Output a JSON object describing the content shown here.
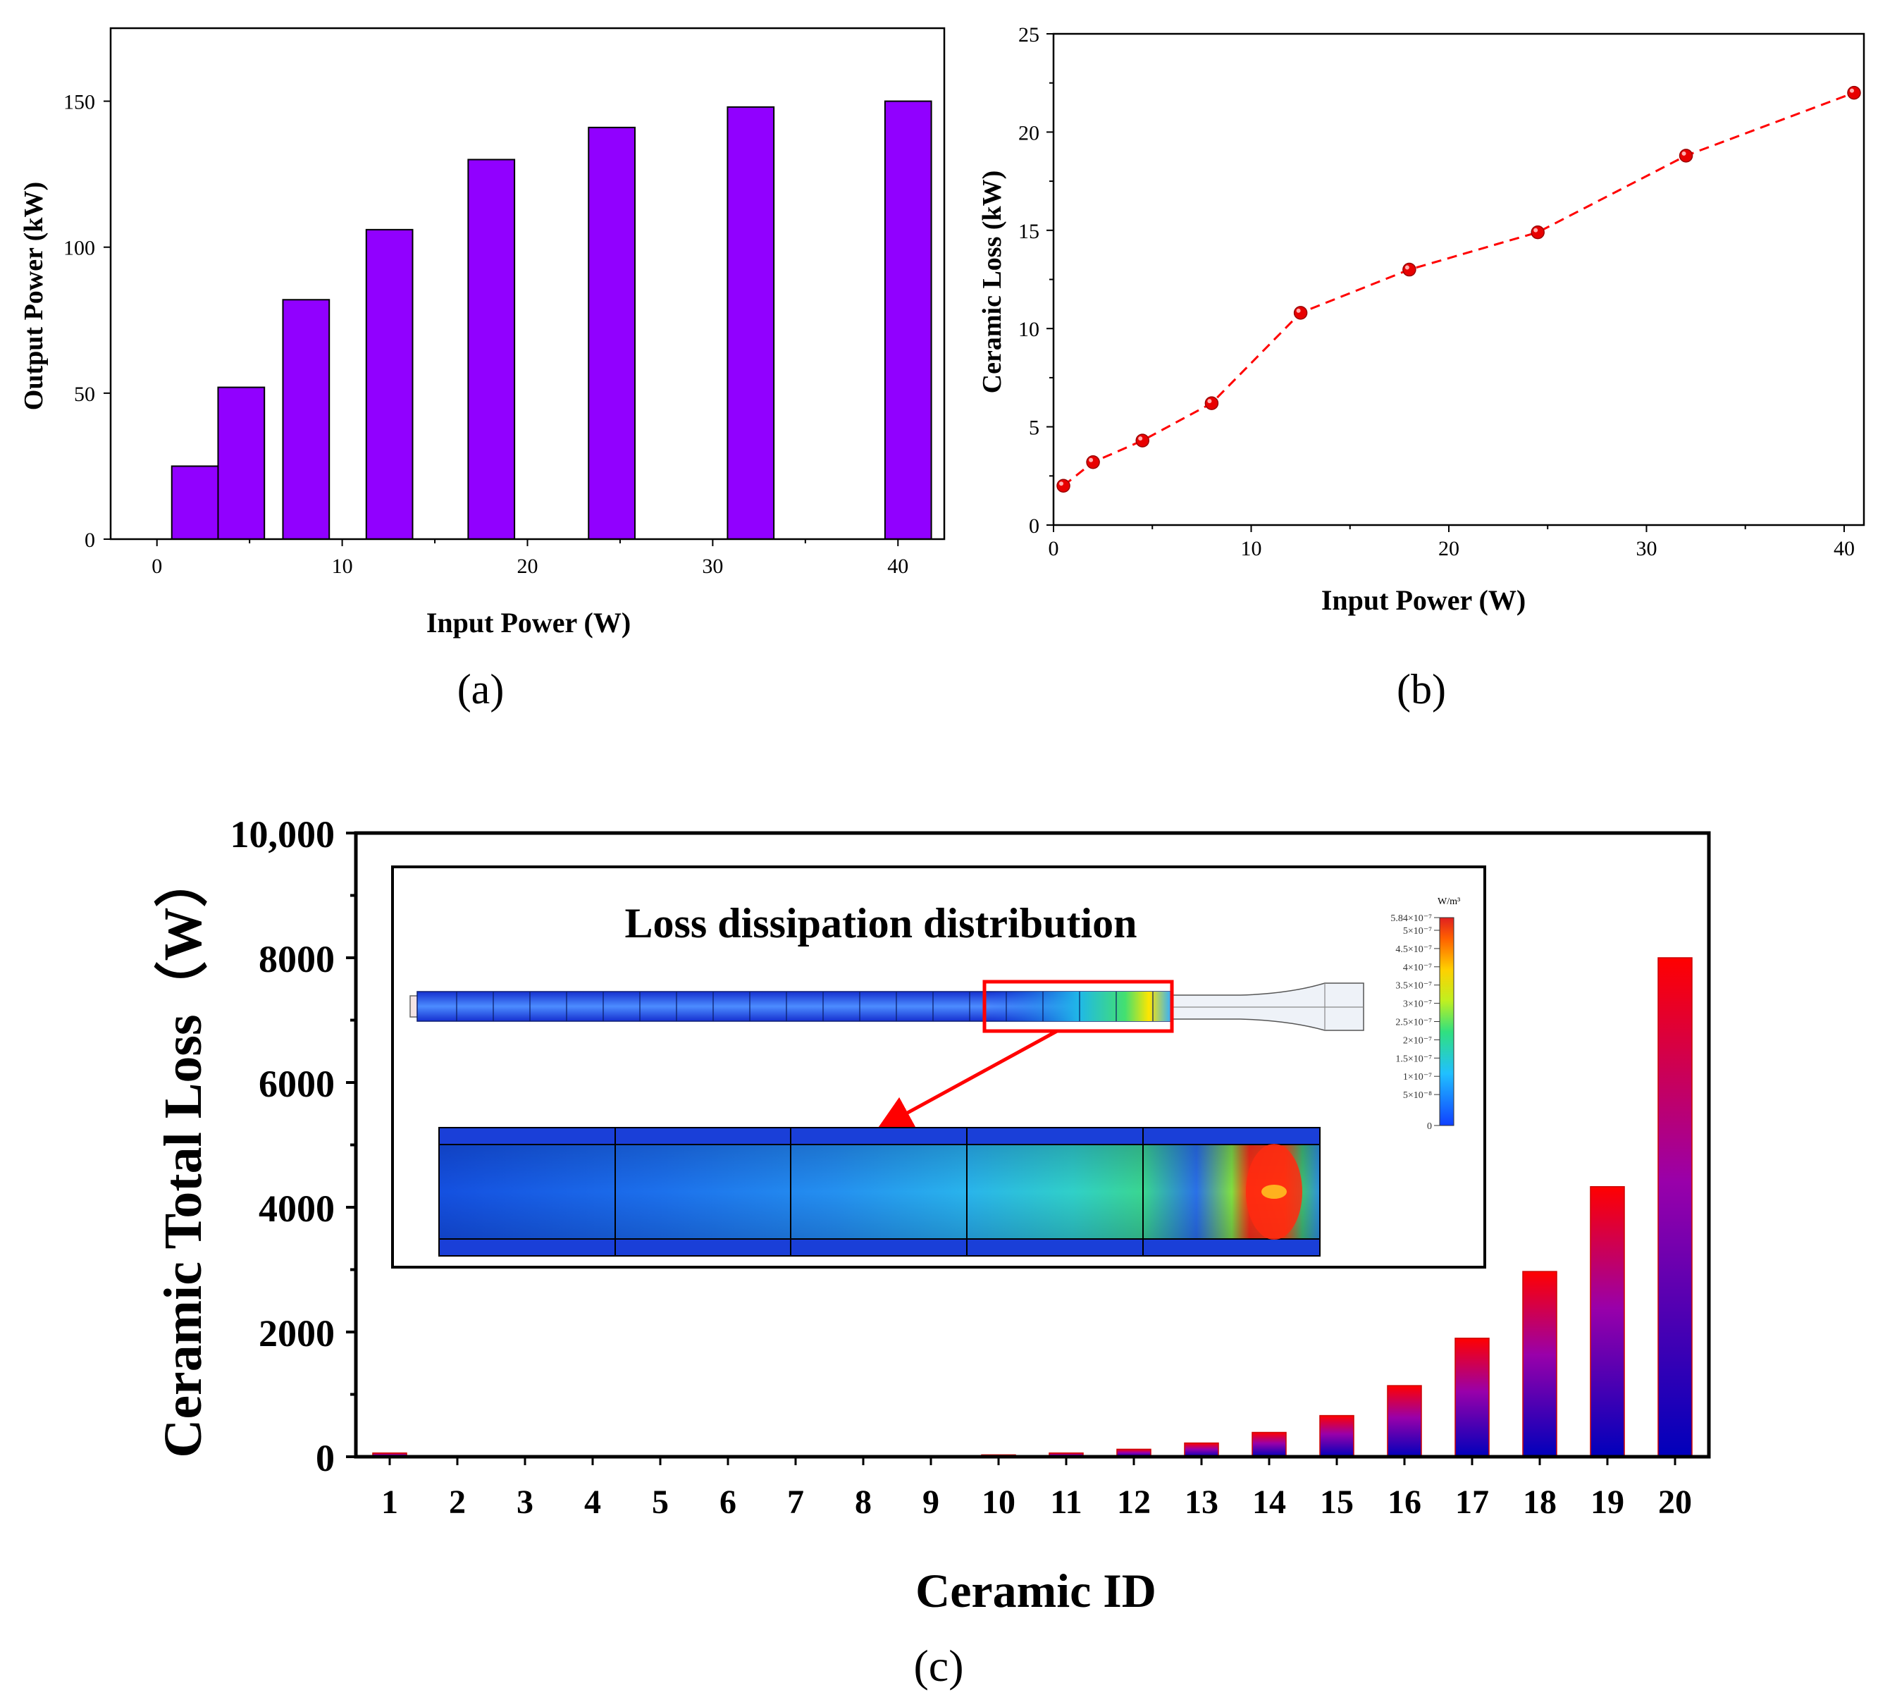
{
  "chart_data": [
    {
      "id": "a",
      "type": "bar",
      "panel_label": "(a)",
      "title": "",
      "xlabel": "Input Power (W)",
      "ylabel": "Output Power (kW)",
      "xlim": [
        -2.5,
        42.5
      ],
      "ylim": [
        0,
        175
      ],
      "xticks": [
        0,
        10,
        20,
        30,
        40
      ],
      "yticks": [
        0,
        50,
        100,
        150
      ],
      "bar_color": "#9100FF",
      "bars": [
        {
          "x0": 0.8,
          "x1": 3.3,
          "value": 25
        },
        {
          "x0": 3.3,
          "x1": 5.8,
          "value": 52
        },
        {
          "x0": 6.8,
          "x1": 9.3,
          "value": 82
        },
        {
          "x0": 11.3,
          "x1": 13.8,
          "value": 106
        },
        {
          "x0": 16.8,
          "x1": 19.3,
          "value": 130
        },
        {
          "x0": 23.3,
          "x1": 25.8,
          "value": 141
        },
        {
          "x0": 30.8,
          "x1": 33.3,
          "value": 148
        },
        {
          "x0": 39.3,
          "x1": 41.8,
          "value": 150
        }
      ]
    },
    {
      "id": "b",
      "type": "line",
      "panel_label": "(b)",
      "title": "",
      "xlabel": "Input Power (W)",
      "ylabel": "Ceramic Loss (kW)",
      "xlim": [
        0,
        41
      ],
      "ylim": [
        0,
        25
      ],
      "xticks": [
        0,
        10,
        20,
        30,
        40
      ],
      "yticks": [
        0,
        5,
        10,
        15,
        20,
        25
      ],
      "line_color": "#FF0000",
      "line_style": "dashed",
      "x": [
        0.5,
        2,
        4.5,
        8,
        12.5,
        18,
        24.5,
        32,
        40.5
      ],
      "y": [
        2.0,
        3.2,
        4.3,
        6.2,
        10.8,
        13.0,
        14.9,
        18.8,
        22.0
      ]
    },
    {
      "id": "c",
      "type": "bar",
      "panel_label": "(c)",
      "title": "",
      "xlabel": "Ceramic ID",
      "ylabel": "Ceramic Total Loss（W）",
      "ylim": [
        0,
        10000
      ],
      "yticks": [
        0,
        2000,
        4000,
        6000,
        8000,
        10000
      ],
      "ytick_labels": [
        "0",
        "2000",
        "4000",
        "6000",
        "8000",
        "10,000"
      ],
      "categories": [
        "1",
        "2",
        "3",
        "4",
        "5",
        "6",
        "7",
        "8",
        "9",
        "10",
        "11",
        "12",
        "13",
        "14",
        "15",
        "16",
        "17",
        "18",
        "19",
        "20"
      ],
      "values": [
        60,
        10,
        10,
        10,
        10,
        10,
        10,
        10,
        10,
        30,
        60,
        120,
        220,
        390,
        660,
        1140,
        1900,
        2970,
        4330,
        8000
      ],
      "gradient": {
        "top": "#FF0000",
        "bottom": "#0000BB"
      },
      "inset": {
        "title": "Loss dissipation distribution",
        "colorbar_unit": "W/m³",
        "colorbar_labels": [
          "5.84×10⁻⁷",
          "5×10⁻⁷",
          "4.5×10⁻⁷",
          "4×10⁻⁷",
          "3.5×10⁻⁷",
          "3×10⁻⁷",
          "2.5×10⁻⁷",
          "2×10⁻⁷",
          "1.5×10⁻⁷",
          "1×10⁻⁷",
          "5×10⁻⁸",
          "0"
        ]
      }
    }
  ]
}
